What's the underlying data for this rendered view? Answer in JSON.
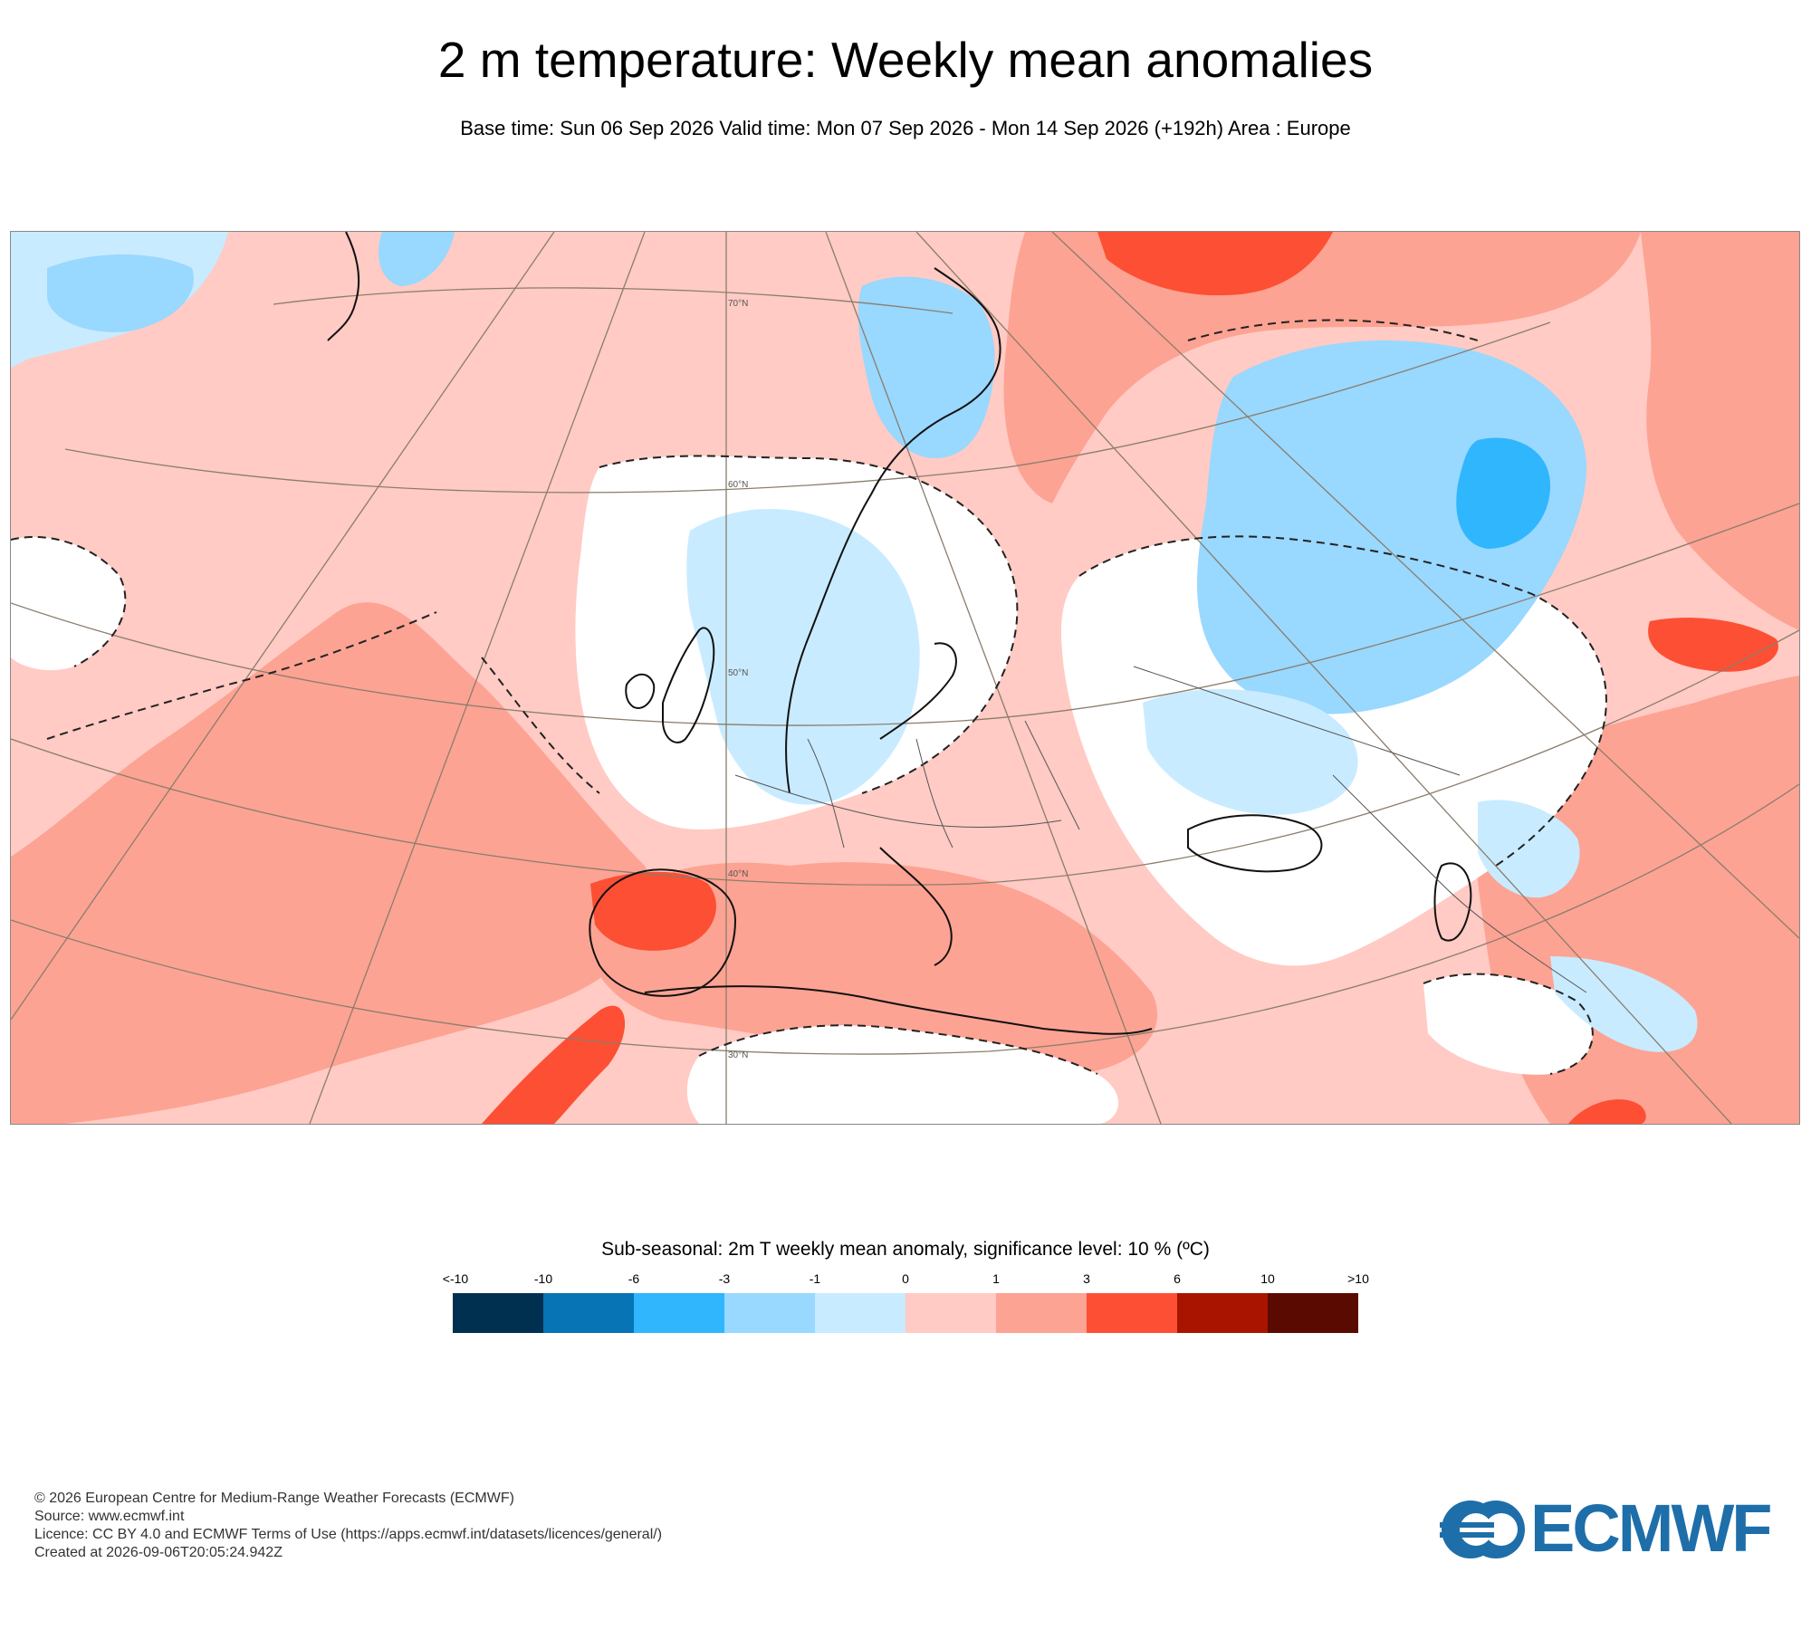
{
  "header": {
    "title": "2 m temperature: Weekly mean anomalies",
    "subtitle": "Base time: Sun 06 Sep 2026 Valid time: Mon 07 Sep 2026 - Mon 14 Sep 2026 (+192h) Area : Europe"
  },
  "map": {
    "area": "Europe",
    "latitude_labels": [
      "70°N",
      "60°N",
      "50°N",
      "40°N",
      "30°N"
    ]
  },
  "legend": {
    "title": "Sub-seasonal: 2m T weekly mean anomaly, significance level: 10 % (ºC)",
    "ticks": [
      "<-10",
      "-10",
      "-6",
      "-3",
      "-1",
      "0",
      "1",
      "3",
      "6",
      "10",
      ">10"
    ],
    "colors": [
      "#00304f",
      "#0774b5",
      "#2fb6fd",
      "#99d8ff",
      "#c9ebff",
      "#ffcbc4",
      "#fda393",
      "#fd4f34",
      "#a91400",
      "#5a0a00"
    ]
  },
  "footer": {
    "line1": "© 2026 European Centre for Medium-Range Weather Forecasts (ECMWF)",
    "line2": "Source: www.ecmwf.int",
    "line3": "Licence: CC BY 4.0 and ECMWF Terms of Use (https://apps.ecmwf.int/datasets/licences/general/)",
    "line4": "Created at 2026-09-06T20:05:24.942Z"
  },
  "logo": {
    "text": "ECMWF",
    "color": "#1e6eaa"
  }
}
